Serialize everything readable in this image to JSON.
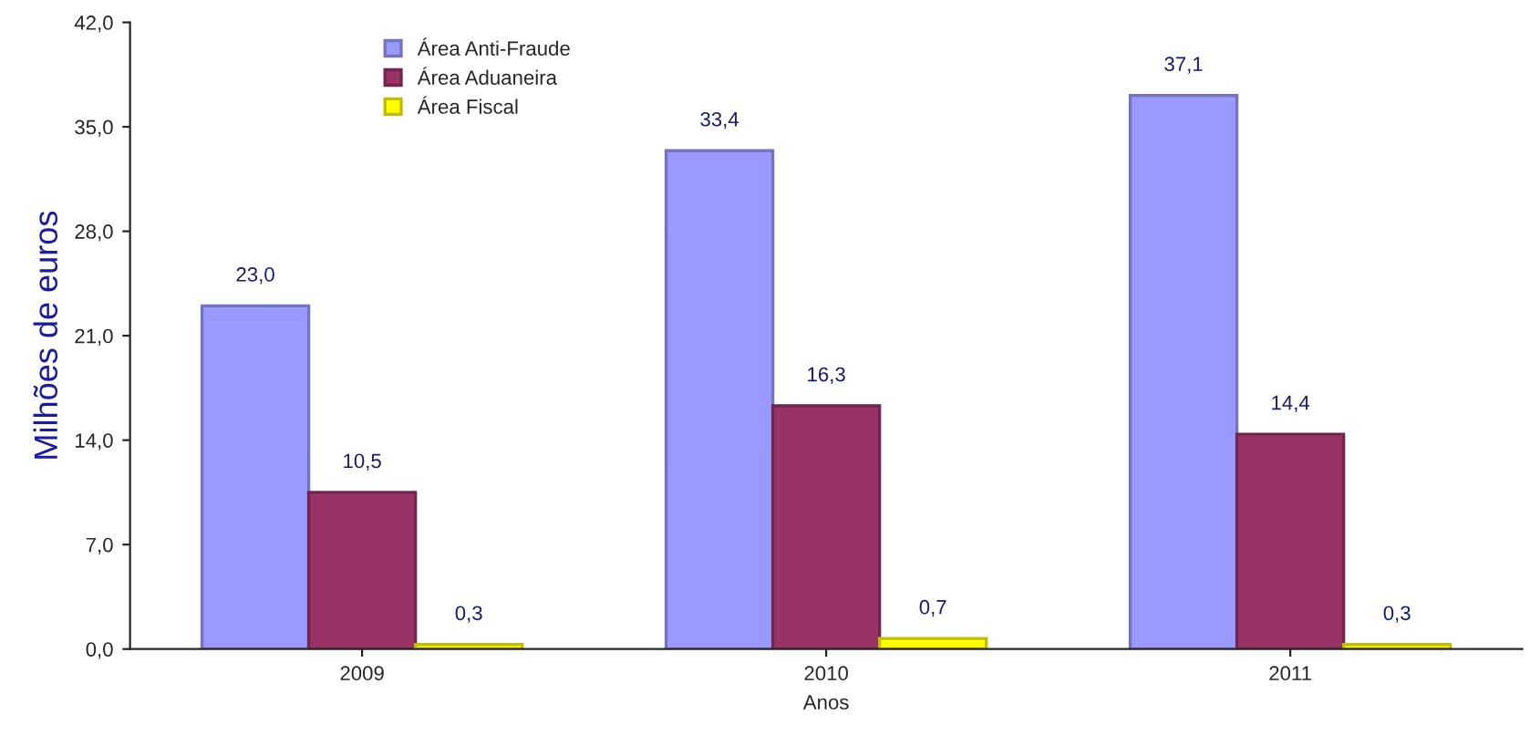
{
  "chart_data": {
    "type": "bar",
    "xlabel": "Anos",
    "ylabel": "Milhões de euros",
    "categories": [
      "2009",
      "2010",
      "2011"
    ],
    "series": [
      {
        "name": "Área Anti-Fraude",
        "color": "#9999ff",
        "values": [
          23.0,
          33.4,
          37.1
        ],
        "value_labels": [
          "23,0",
          "33,4",
          "37,1"
        ]
      },
      {
        "name": "Área Aduaneira",
        "color": "#993366",
        "values": [
          10.5,
          16.3,
          14.4
        ],
        "value_labels": [
          "10,5",
          "16,3",
          "14,4"
        ]
      },
      {
        "name": "Área Fiscal",
        "color": "#ffff00",
        "values": [
          0.3,
          0.7,
          0.3
        ],
        "value_labels": [
          "0,3",
          "0,7",
          "0,3"
        ]
      }
    ],
    "ylim": [
      0,
      42
    ],
    "yticks": [
      {
        "value": 0,
        "label": "0,0"
      },
      {
        "value": 7,
        "label": "7,0"
      },
      {
        "value": 14,
        "label": "14,0"
      },
      {
        "value": 21,
        "label": "21,0"
      },
      {
        "value": 28,
        "label": "28,0"
      },
      {
        "value": 35,
        "label": "35,0"
      },
      {
        "value": 42,
        "label": "42,0"
      }
    ],
    "legend": "top left",
    "grid": false
  }
}
